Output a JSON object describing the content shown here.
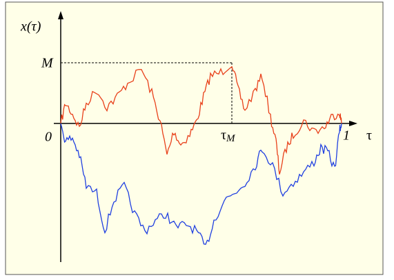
{
  "labels": {
    "y_axis": "x(τ)",
    "max": "M",
    "origin": "0",
    "tau_m": "τ",
    "tau_m_sub": "M",
    "one": "1",
    "x_axis": "τ"
  }
}
